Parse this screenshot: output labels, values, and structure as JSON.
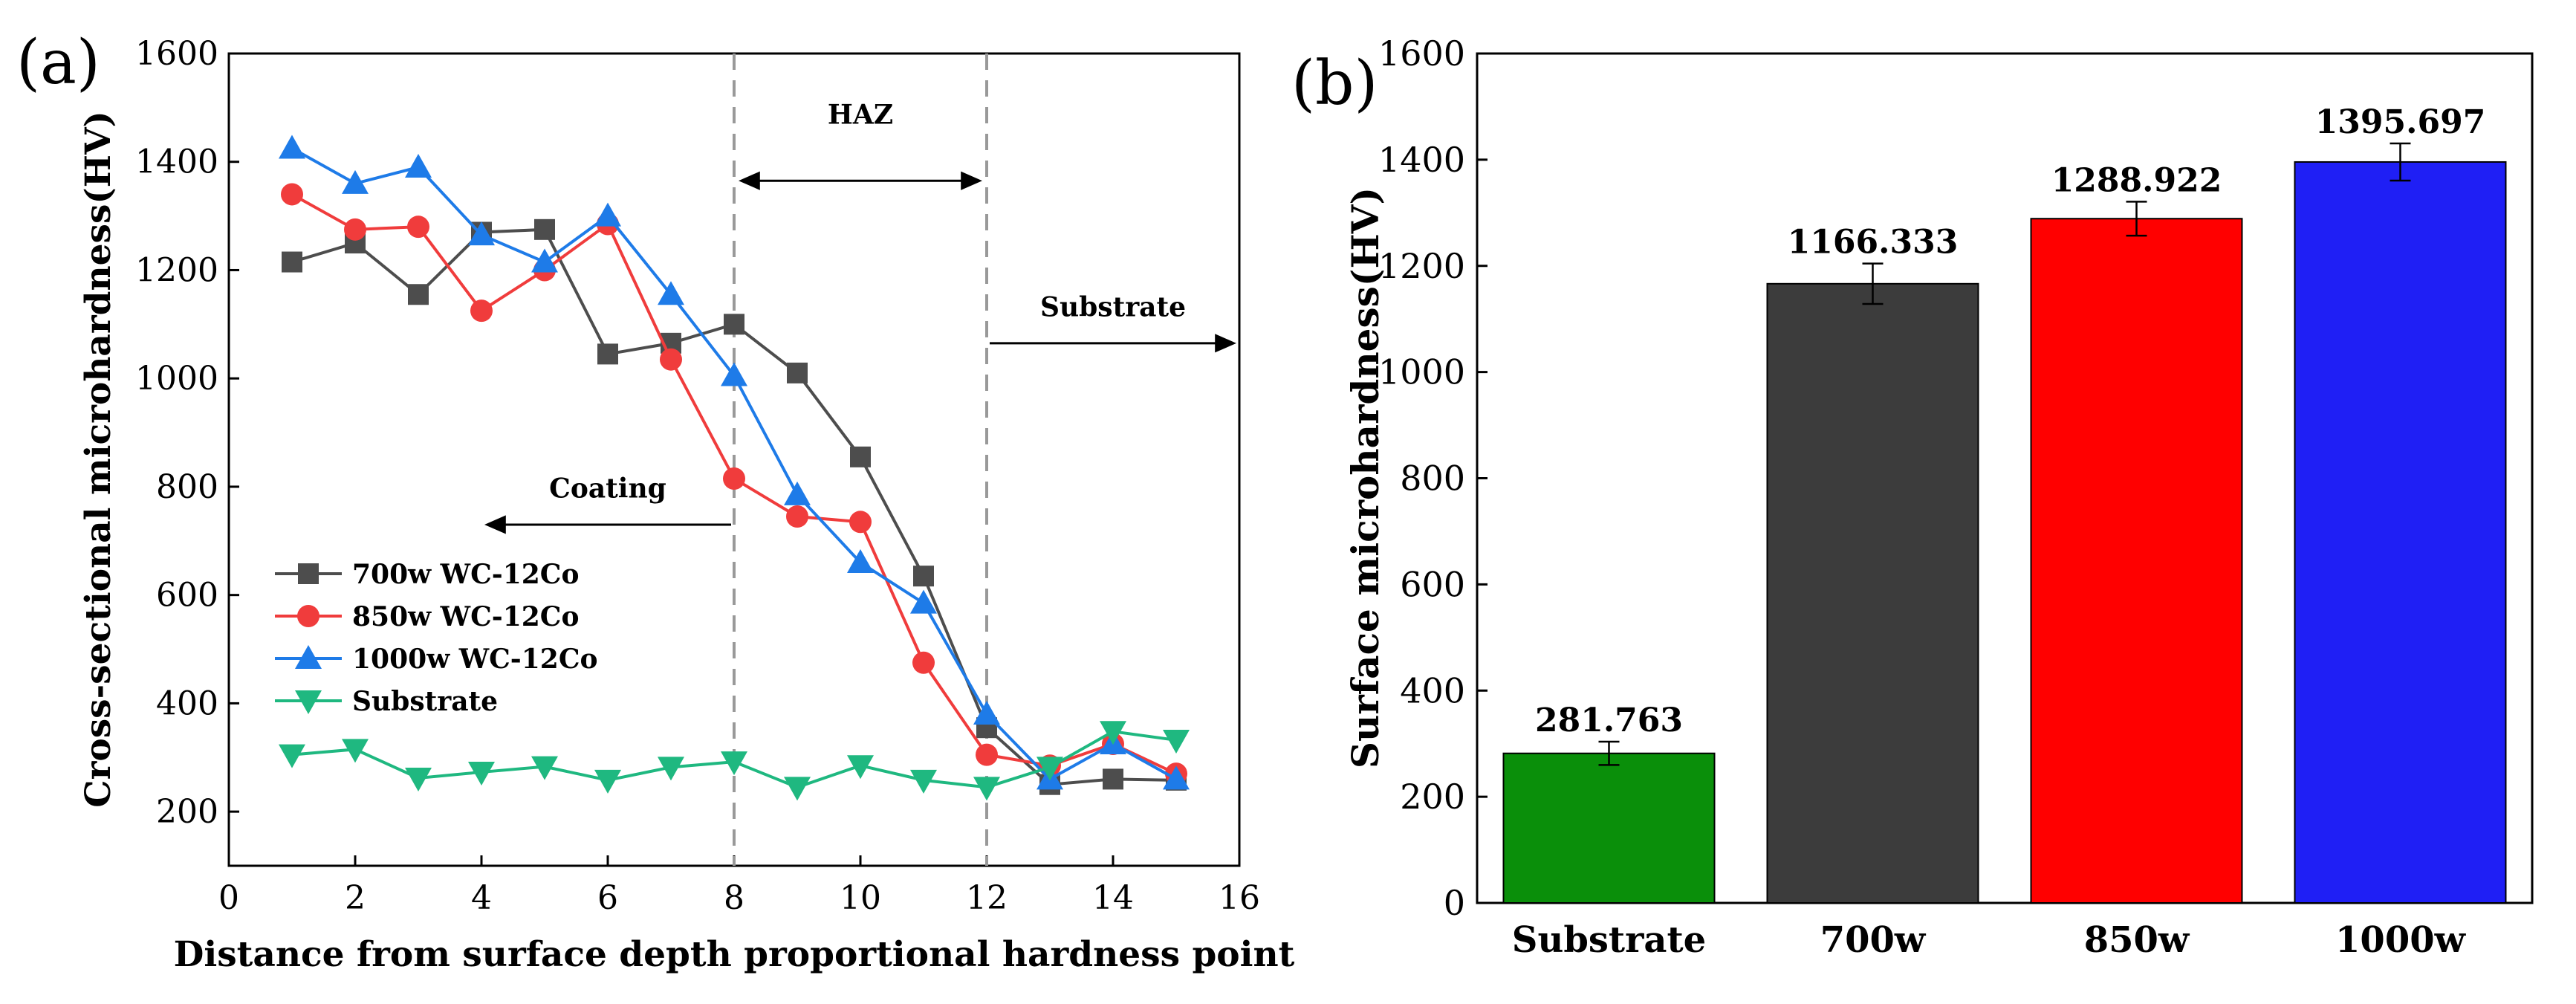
{
  "chart_data": [
    {
      "panel_label": "(a)",
      "type": "line",
      "title": "",
      "xlabel": "Distance from surface depth proportional hardness point",
      "ylabel": "Cross-sectional microhardness(HV)",
      "xlim": [
        0,
        16
      ],
      "ylim": [
        100,
        1600
      ],
      "xticks": [
        0,
        2,
        4,
        6,
        8,
        10,
        12,
        14,
        16
      ],
      "yticks": [
        200,
        400,
        600,
        800,
        1000,
        1200,
        1400,
        1600
      ],
      "x": [
        1,
        2,
        3,
        4,
        5,
        6,
        7,
        8,
        9,
        10,
        11,
        12,
        13,
        14,
        15
      ],
      "series": [
        {
          "name": "700w WC-12Co",
          "color": "#4d4d4d",
          "marker": "square",
          "values": [
            1215,
            1250,
            1155,
            1270,
            1275,
            1045,
            1065,
            1100,
            1010,
            855,
            635,
            355,
            250,
            260,
            258
          ]
        },
        {
          "name": "850w WC-12Co",
          "color": "#f03c3c",
          "marker": "circle",
          "values": [
            1340,
            1275,
            1280,
            1125,
            1200,
            1285,
            1035,
            815,
            745,
            735,
            475,
            305,
            285,
            325,
            270
          ]
        },
        {
          "name": "1000w WC-12Co",
          "color": "#1e7be8",
          "marker": "triangle-up",
          "values": [
            1425,
            1360,
            1390,
            1265,
            1215,
            1300,
            1155,
            1005,
            785,
            660,
            585,
            380,
            260,
            325,
            260
          ]
        },
        {
          "name": "Substrate",
          "color": "#1fb880",
          "marker": "triangle-down",
          "values": [
            305,
            315,
            262,
            273,
            283,
            258,
            282,
            292,
            245,
            285,
            258,
            245,
            282,
            348,
            332
          ]
        }
      ],
      "vlines": [
        8,
        12
      ],
      "annotations": {
        "haz": "HAZ",
        "substrate": "Substrate",
        "coating": "Coating"
      },
      "annotation_positions": {
        "haz_arrow": {
          "x_from": 8,
          "x_to": 12,
          "y": 1365
        },
        "haz_text": {
          "x": 10,
          "y": 1470
        },
        "substrate_arrow": {
          "x_from": 12,
          "x_to": 16,
          "y": 1065
        },
        "substrate_text": {
          "x": 14,
          "y": 1115
        },
        "coating_arrow": {
          "x_from": 8,
          "x_to": 4,
          "y": 730
        },
        "coating_text": {
          "x": 6,
          "y": 780
        }
      },
      "legend_position": "bottom-left"
    },
    {
      "panel_label": "(b)",
      "type": "bar",
      "title": "",
      "xlabel": "",
      "ylabel": "Surface microhardness(HV)",
      "ylim": [
        0,
        1600
      ],
      "yticks": [
        0,
        200,
        400,
        600,
        800,
        1000,
        1200,
        1400,
        1600
      ],
      "categories": [
        "Substrate",
        "700w",
        "850w",
        "1000w"
      ],
      "values": [
        281.763,
        1166.333,
        1288.922,
        1395.697
      ],
      "value_labels": [
        "281.763",
        "1166.333",
        "1288.922",
        "1395.697"
      ],
      "errors": [
        22,
        38,
        32,
        35
      ],
      "colors": [
        "#0a8f0a",
        "#3c3c3c",
        "#ff0000",
        "#1f1ff5"
      ]
    }
  ]
}
